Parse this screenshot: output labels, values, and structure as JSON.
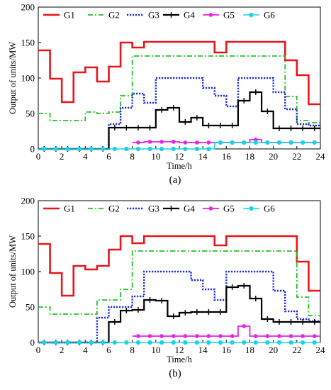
{
  "chart_data": [
    {
      "panel_label": "(a)",
      "type": "line",
      "xlabel": "Time/h",
      "ylabel": "Output of units/MW",
      "xlim": [
        0,
        24
      ],
      "ylim": [
        0,
        200
      ],
      "xticks": [
        0,
        2,
        4,
        6,
        8,
        10,
        12,
        14,
        16,
        18,
        20,
        22,
        24
      ],
      "yticks": [
        0,
        50,
        100,
        150,
        200
      ],
      "grid": false,
      "legend_position": "top",
      "series": [
        {
          "name": "G1",
          "color": "#e8161c",
          "dash": "solid",
          "marker": "none",
          "values": [
            139,
            99,
            66,
            108,
            115,
            95,
            116,
            150,
            143,
            151,
            151,
            151,
            151,
            151,
            151,
            136,
            151,
            151,
            151,
            151,
            151,
            125,
            104,
            63
          ]
        },
        {
          "name": "G2",
          "color": "#22c422",
          "dash": "dashdot",
          "marker": "none",
          "values": [
            50,
            40,
            40,
            40,
            52,
            50,
            52,
            75,
            131,
            131,
            131,
            131,
            131,
            131,
            131,
            131,
            131,
            131,
            131,
            131,
            131,
            74,
            40,
            37
          ]
        },
        {
          "name": "G3",
          "color": "#1a2fd6",
          "dash": "dot",
          "marker": "none",
          "values": [
            0,
            0,
            0,
            0,
            0,
            0,
            35,
            58,
            78,
            65,
            100,
            100,
            100,
            100,
            86,
            75,
            60,
            100,
            100,
            100,
            80,
            56,
            35,
            33
          ]
        },
        {
          "name": "G4",
          "color": "#000000",
          "dash": "solid",
          "marker": "plus",
          "values": [
            0,
            0,
            0,
            0,
            0,
            0,
            30,
            30,
            30,
            30,
            55,
            58,
            38,
            44,
            33,
            33,
            33,
            68,
            80,
            53,
            29,
            29,
            29,
            29
          ]
        },
        {
          "name": "G5",
          "color": "#e61fe6",
          "dash": "solid",
          "marker": "star",
          "values": [
            null,
            null,
            null,
            null,
            null,
            null,
            null,
            null,
            9,
            10,
            10,
            10,
            9,
            9,
            9,
            9,
            9,
            9,
            13,
            9,
            9,
            9,
            9,
            9
          ]
        },
        {
          "name": "G6",
          "color": "#19d2e6",
          "dash": "solid",
          "marker": "circle",
          "values": [
            0,
            0,
            0,
            0,
            0,
            0,
            0,
            0,
            0,
            0,
            0,
            0,
            0,
            0,
            0,
            9,
            9,
            9,
            9,
            9,
            9,
            9,
            9,
            9
          ]
        }
      ]
    },
    {
      "panel_label": "(b)",
      "type": "line",
      "xlabel": "Time/h",
      "ylabel": "Output of units/MW",
      "xlim": [
        0,
        24
      ],
      "ylim": [
        0,
        200
      ],
      "xticks": [
        0,
        2,
        4,
        6,
        8,
        10,
        12,
        14,
        16,
        18,
        20,
        22,
        24
      ],
      "yticks": [
        0,
        50,
        100,
        150,
        200
      ],
      "grid": false,
      "legend_position": "top",
      "series": [
        {
          "name": "G1",
          "color": "#e8161c",
          "dash": "solid",
          "marker": "none",
          "values": [
            139,
            98,
            66,
            108,
            103,
            108,
            131,
            150,
            140,
            150,
            150,
            150,
            150,
            150,
            150,
            137,
            150,
            150,
            150,
            150,
            150,
            150,
            114,
            73
          ]
        },
        {
          "name": "G2",
          "color": "#22c422",
          "dash": "dashdot",
          "marker": "none",
          "values": [
            50,
            40,
            40,
            40,
            40,
            60,
            60,
            75,
            129,
            129,
            129,
            129,
            129,
            129,
            129,
            129,
            129,
            129,
            129,
            129,
            129,
            129,
            64,
            38
          ]
        },
        {
          "name": "G3",
          "color": "#1a2fd6",
          "dash": "dot",
          "marker": "none",
          "values": [
            0,
            0,
            0,
            0,
            0,
            35,
            50,
            50,
            65,
            100,
            100,
            100,
            100,
            88,
            75,
            60,
            100,
            100,
            100,
            100,
            73,
            44,
            33,
            30
          ]
        },
        {
          "name": "G4",
          "color": "#000000",
          "dash": "solid",
          "marker": "plus",
          "values": [
            0,
            0,
            0,
            0,
            0,
            0,
            29,
            45,
            46,
            60,
            59,
            37,
            42,
            43,
            43,
            43,
            78,
            80,
            62,
            33,
            29,
            29,
            29,
            29
          ]
        },
        {
          "name": "G5",
          "color": "#e61fe6",
          "dash": "solid",
          "marker": "star",
          "values": [
            null,
            null,
            null,
            null,
            null,
            null,
            null,
            null,
            9,
            9,
            9,
            9,
            9,
            9,
            9,
            9,
            9,
            23,
            9,
            9,
            9,
            9,
            9,
            9
          ]
        },
        {
          "name": "G6",
          "color": "#19d2e6",
          "dash": "solid",
          "marker": "circle",
          "values": [
            0,
            0,
            0,
            0,
            0,
            0,
            0,
            0,
            0,
            0,
            0,
            0,
            0,
            0,
            0,
            0,
            0,
            0,
            0,
            0,
            0,
            0,
            0,
            0
          ]
        }
      ]
    }
  ]
}
